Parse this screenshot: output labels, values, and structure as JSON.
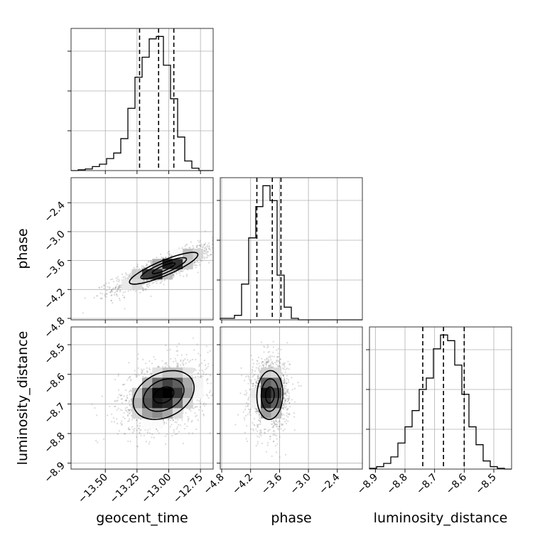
{
  "chart_data": {
    "type": "corner",
    "title": "",
    "parameters": [
      "geocent_time",
      "phase",
      "luminosity_distance"
    ],
    "axis_labels": {
      "geocent_time": "geocent_time",
      "phase": "phase",
      "luminosity_distance": "luminosity_distance"
    },
    "ranges": {
      "geocent_time": [
        -13.77,
        -12.65
      ],
      "phase": [
        -4.83,
        -1.88
      ],
      "luminosity_distance": [
        -8.92,
        -8.44
      ]
    },
    "tick_values": {
      "geocent_time": [
        -13.5,
        -13.25,
        -13.0,
        -12.75
      ],
      "phase": [
        -4.8,
        -4.2,
        -3.6,
        -3.0,
        -2.4
      ],
      "luminosity_distance": [
        -8.9,
        -8.8,
        -8.7,
        -8.6,
        -8.5
      ]
    },
    "tick_labels": {
      "geocent_time": [
        "−13.50",
        "−13.25",
        "−13.00",
        "−12.75"
      ],
      "phase": [
        "−4.8",
        "−4.2",
        "−3.6",
        "−3.0",
        "−2.4"
      ],
      "luminosity_distance": [
        "−8.9",
        "−8.8",
        "−8.7",
        "−8.6",
        "−8.5"
      ]
    },
    "quantiles": {
      "geocent_time": [
        -13.23,
        -13.08,
        -12.96
      ],
      "phase": [
        -4.07,
        -3.75,
        -3.57
      ],
      "luminosity_distance": [
        -8.74,
        -8.67,
        -8.6
      ]
    },
    "histograms": {
      "geocent_time": {
        "edges": [
          -13.77,
          -13.714,
          -13.658,
          -13.602,
          -13.546,
          -13.49,
          -13.434,
          -13.378,
          -13.322,
          -13.266,
          -13.21,
          -13.154,
          -13.098,
          -13.042,
          -12.986,
          -12.93,
          -12.874,
          -12.818,
          -12.762,
          -12.706,
          -12.65
        ],
        "counts": [
          0,
          1,
          2,
          5,
          8,
          15,
          22,
          40,
          78,
          117,
          142,
          165,
          168,
          132,
          90,
          42,
          12,
          3,
          0,
          0
        ]
      },
      "phase": {
        "edges": [
          -4.83,
          -4.6825,
          -4.535,
          -4.3875,
          -4.24,
          -4.0925,
          -3.945,
          -3.7975,
          -3.65,
          -3.5025,
          -3.355,
          -3.2075,
          -3.06,
          -2.9125,
          -2.765,
          -2.6175,
          -2.47,
          -2.3225,
          -2.175,
          -2.0275,
          -1.88
        ],
        "counts": [
          2,
          2,
          6,
          48,
          110,
          152,
          180,
          160,
          60,
          17,
          2,
          0,
          0,
          0,
          0,
          0,
          0,
          0,
          0,
          0
        ]
      },
      "luminosity_distance": {
        "edges": [
          -8.92,
          -8.896,
          -8.872,
          -8.848,
          -8.824,
          -8.8,
          -8.776,
          -8.752,
          -8.728,
          -8.704,
          -8.68,
          -8.656,
          -8.632,
          -8.608,
          -8.584,
          -8.56,
          -8.536,
          -8.512,
          -8.488,
          -8.464,
          -8.44
        ],
        "counts": [
          1,
          3,
          7,
          15,
          32,
          52,
          72,
          98,
          112,
          148,
          165,
          158,
          128,
          92,
          52,
          30,
          10,
          3,
          1,
          0
        ]
      }
    },
    "density_2d": [
      {
        "x": "geocent_time",
        "y": "phase",
        "center": [
          -13.04,
          -3.76
        ],
        "sigma": [
          0.18,
          0.22
        ],
        "rho": 0.86,
        "contour_levels": [
          0.5,
          1.0,
          1.5
        ]
      },
      {
        "x": "geocent_time",
        "y": "luminosity_distance",
        "center": [
          -13.04,
          -8.67
        ],
        "sigma": [
          0.16,
          0.055
        ],
        "rho": 0.3,
        "contour_levels": [
          0.5,
          1.0,
          1.5
        ]
      },
      {
        "x": "phase",
        "y": "luminosity_distance",
        "center": [
          -3.8,
          -8.67
        ],
        "sigma": [
          0.18,
          0.055
        ],
        "rho": 0.05,
        "contour_levels": [
          0.5,
          1.0,
          1.5
        ]
      }
    ],
    "grid": true,
    "legend": "none"
  },
  "colors": {
    "line": "#000000",
    "grid": "#b0b0b0",
    "scatter": "#7a7a7a"
  }
}
